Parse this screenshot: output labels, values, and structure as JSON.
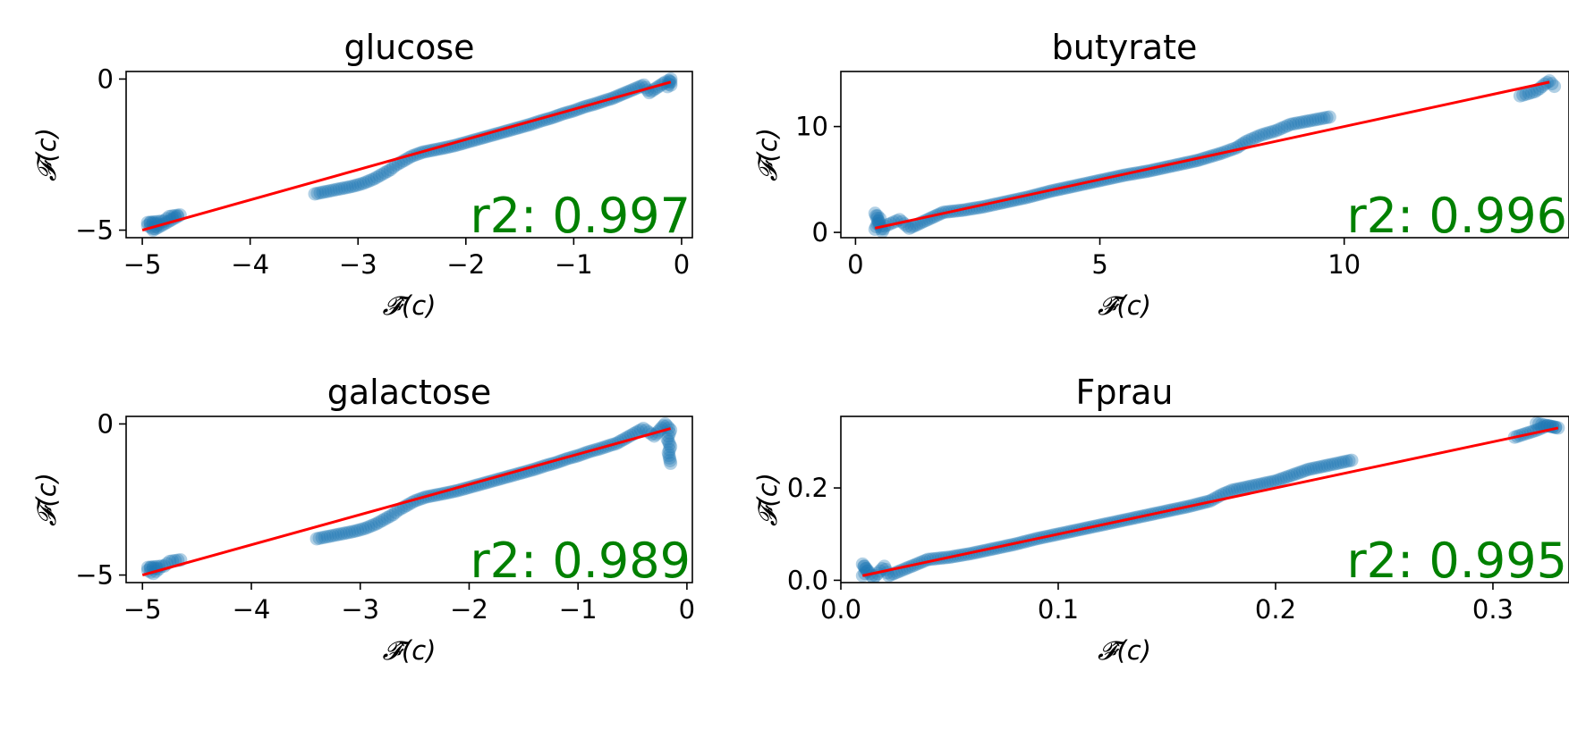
{
  "chart_data": [
    {
      "type": "scatter",
      "title": "glucose",
      "xlabel": "𝓕̂(c)",
      "ylabel": "𝓕(c)",
      "xlim": [
        -5.15,
        0.1
      ],
      "ylim": [
        -5.25,
        0.25
      ],
      "xticks": [
        -5,
        -4,
        -3,
        -2,
        -1,
        0
      ],
      "xtick_labels": [
        "−5",
        "−4",
        "−3",
        "−2",
        "−1",
        "0"
      ],
      "yticks": [
        -5,
        0
      ],
      "ytick_labels": [
        "−5",
        "0"
      ],
      "annotation": "r2: 0.997",
      "fit_line": {
        "x": [
          -5.0,
          -0.1
        ],
        "y": [
          -5.0,
          -0.1
        ]
      },
      "points": [
        [
          -4.95,
          -4.85
        ],
        [
          -4.9,
          -4.95
        ],
        [
          -4.85,
          -4.8
        ],
        [
          -4.95,
          -4.75
        ],
        [
          -4.8,
          -4.7
        ],
        [
          -4.75,
          -4.55
        ],
        [
          -4.65,
          -4.5
        ],
        [
          -4.9,
          -5.0
        ],
        [
          -3.4,
          -3.8
        ],
        [
          -3.05,
          -3.55
        ],
        [
          -2.95,
          -3.45
        ],
        [
          -2.85,
          -3.3
        ],
        [
          -2.8,
          -3.2
        ],
        [
          -2.75,
          -3.1
        ],
        [
          -2.7,
          -3.0
        ],
        [
          -2.65,
          -2.85
        ],
        [
          -2.6,
          -2.75
        ],
        [
          -2.5,
          -2.55
        ],
        [
          -2.4,
          -2.42
        ],
        [
          -2.3,
          -2.35
        ],
        [
          -2.2,
          -2.28
        ],
        [
          -2.1,
          -2.2
        ],
        [
          -2.0,
          -2.1
        ],
        [
          -1.9,
          -2.0
        ],
        [
          -1.8,
          -1.9
        ],
        [
          -1.7,
          -1.8
        ],
        [
          -1.6,
          -1.7
        ],
        [
          -1.5,
          -1.6
        ],
        [
          -1.4,
          -1.5
        ],
        [
          -1.3,
          -1.38
        ],
        [
          -1.2,
          -1.28
        ],
        [
          -1.1,
          -1.15
        ],
        [
          -1.0,
          -1.05
        ],
        [
          -0.9,
          -0.92
        ],
        [
          -0.8,
          -0.82
        ],
        [
          -0.7,
          -0.7
        ],
        [
          -0.65,
          -0.65
        ],
        [
          -0.35,
          -0.2
        ],
        [
          -0.3,
          -0.45
        ],
        [
          -0.15,
          -0.1
        ],
        [
          -0.12,
          -0.05
        ],
        [
          -0.1,
          -0.2
        ],
        [
          -0.1,
          0.0
        ],
        [
          -0.13,
          -0.25
        ]
      ]
    },
    {
      "type": "scatter",
      "title": "butyrate",
      "xlabel": "𝓕̂(c)",
      "ylabel": "𝓕(c)",
      "xlim": [
        -0.3,
        14.6
      ],
      "ylim": [
        -0.5,
        15.2
      ],
      "xticks": [
        0,
        5,
        10
      ],
      "xtick_labels": [
        "0",
        "5",
        "10"
      ],
      "yticks": [
        0,
        10
      ],
      "ytick_labels": [
        "0",
        "10"
      ],
      "annotation": "r2: 0.996",
      "fit_line": {
        "x": [
          0.4,
          14.2
        ],
        "y": [
          0.4,
          14.2
        ]
      },
      "points": [
        [
          0.4,
          0.3
        ],
        [
          0.45,
          0.8
        ],
        [
          0.5,
          1.3
        ],
        [
          0.4,
          1.8
        ],
        [
          0.55,
          0.1
        ],
        [
          0.6,
          0.6
        ],
        [
          0.9,
          1.2
        ],
        [
          1.1,
          0.4
        ],
        [
          1.8,
          1.9
        ],
        [
          2.2,
          2.1
        ],
        [
          2.6,
          2.4
        ],
        [
          3.0,
          2.8
        ],
        [
          3.5,
          3.3
        ],
        [
          4.0,
          3.9
        ],
        [
          4.5,
          4.4
        ],
        [
          5.0,
          4.9
        ],
        [
          5.5,
          5.4
        ],
        [
          6.0,
          5.8
        ],
        [
          6.5,
          6.3
        ],
        [
          7.0,
          6.8
        ],
        [
          7.5,
          7.5
        ],
        [
          7.8,
          8.0
        ],
        [
          8.0,
          8.6
        ],
        [
          8.3,
          9.2
        ],
        [
          8.6,
          9.6
        ],
        [
          8.9,
          10.2
        ],
        [
          9.7,
          10.9
        ],
        [
          13.6,
          12.9
        ],
        [
          13.9,
          13.3
        ],
        [
          14.0,
          13.6
        ],
        [
          14.1,
          14.0
        ],
        [
          14.2,
          14.3
        ],
        [
          14.3,
          13.8
        ]
      ]
    },
    {
      "type": "scatter",
      "title": "galactose",
      "xlabel": "𝓕̂(c)",
      "ylabel": "𝓕(c)",
      "xlim": [
        -5.15,
        0.05
      ],
      "ylim": [
        -5.25,
        0.25
      ],
      "xticks": [
        -5,
        -4,
        -3,
        -2,
        -1,
        0
      ],
      "xtick_labels": [
        "−5",
        "−4",
        "−3",
        "−2",
        "−1",
        "0"
      ],
      "yticks": [
        -5,
        0
      ],
      "ytick_labels": [
        "−5",
        "0"
      ],
      "annotation": "r2: 0.989",
      "fit_line": {
        "x": [
          -5.0,
          -0.15
        ],
        "y": [
          -5.0,
          -0.15
        ]
      },
      "points": [
        [
          -4.95,
          -4.85
        ],
        [
          -4.9,
          -4.95
        ],
        [
          -4.85,
          -4.8
        ],
        [
          -4.95,
          -4.75
        ],
        [
          -4.8,
          -4.7
        ],
        [
          -4.75,
          -4.55
        ],
        [
          -4.65,
          -4.5
        ],
        [
          -3.4,
          -3.8
        ],
        [
          -3.05,
          -3.55
        ],
        [
          -2.95,
          -3.45
        ],
        [
          -2.85,
          -3.3
        ],
        [
          -2.8,
          -3.2
        ],
        [
          -2.75,
          -3.1
        ],
        [
          -2.7,
          -3.0
        ],
        [
          -2.65,
          -2.85
        ],
        [
          -2.6,
          -2.75
        ],
        [
          -2.5,
          -2.55
        ],
        [
          -2.4,
          -2.42
        ],
        [
          -2.3,
          -2.35
        ],
        [
          -2.2,
          -2.28
        ],
        [
          -2.1,
          -2.2
        ],
        [
          -2.0,
          -2.1
        ],
        [
          -1.9,
          -2.0
        ],
        [
          -1.8,
          -1.9
        ],
        [
          -1.7,
          -1.8
        ],
        [
          -1.6,
          -1.7
        ],
        [
          -1.5,
          -1.6
        ],
        [
          -1.4,
          -1.5
        ],
        [
          -1.3,
          -1.38
        ],
        [
          -1.2,
          -1.28
        ],
        [
          -1.1,
          -1.15
        ],
        [
          -1.0,
          -1.05
        ],
        [
          -0.9,
          -0.92
        ],
        [
          -0.8,
          -0.82
        ],
        [
          -0.7,
          -0.7
        ],
        [
          -0.65,
          -0.65
        ],
        [
          -0.4,
          -0.15
        ],
        [
          -0.3,
          -0.4
        ],
        [
          -0.2,
          0.0
        ],
        [
          -0.15,
          -0.2
        ],
        [
          -0.18,
          -0.5
        ],
        [
          -0.15,
          -0.75
        ],
        [
          -0.17,
          -0.95
        ],
        [
          -0.15,
          -1.3
        ]
      ]
    },
    {
      "type": "scatter",
      "title": "Fprau",
      "xlabel": "𝓕̂(c)",
      "ylabel": "𝓕(c)",
      "xlim": [
        0.0,
        0.335
      ],
      "ylim": [
        -0.005,
        0.355
      ],
      "xticks": [
        0.0,
        0.1,
        0.2,
        0.3
      ],
      "xtick_labels": [
        "0.0",
        "0.1",
        "0.2",
        "0.3"
      ],
      "yticks": [
        0.0,
        0.2
      ],
      "ytick_labels": [
        "0.0",
        "0.2"
      ],
      "annotation": "r2: 0.995",
      "fit_line": {
        "x": [
          0.01,
          0.33
        ],
        "y": [
          0.01,
          0.33
        ]
      },
      "points": [
        [
          0.01,
          0.01
        ],
        [
          0.012,
          0.02
        ],
        [
          0.01,
          0.035
        ],
        [
          0.015,
          0.005
        ],
        [
          0.02,
          0.03
        ],
        [
          0.022,
          0.01
        ],
        [
          0.04,
          0.045
        ],
        [
          0.05,
          0.05
        ],
        [
          0.06,
          0.058
        ],
        [
          0.07,
          0.068
        ],
        [
          0.08,
          0.078
        ],
        [
          0.09,
          0.09
        ],
        [
          0.1,
          0.1
        ],
        [
          0.11,
          0.11
        ],
        [
          0.12,
          0.12
        ],
        [
          0.13,
          0.13
        ],
        [
          0.14,
          0.14
        ],
        [
          0.15,
          0.15
        ],
        [
          0.16,
          0.16
        ],
        [
          0.17,
          0.172
        ],
        [
          0.175,
          0.185
        ],
        [
          0.18,
          0.195
        ],
        [
          0.19,
          0.205
        ],
        [
          0.2,
          0.215
        ],
        [
          0.215,
          0.24
        ],
        [
          0.235,
          0.26
        ],
        [
          0.31,
          0.31
        ],
        [
          0.32,
          0.325
        ],
        [
          0.325,
          0.335
        ],
        [
          0.33,
          0.33
        ],
        [
          0.32,
          0.34
        ]
      ]
    }
  ],
  "colors": {
    "points": "#1f77b4",
    "fit_line": "#ff0000",
    "annotation": "#008000"
  }
}
